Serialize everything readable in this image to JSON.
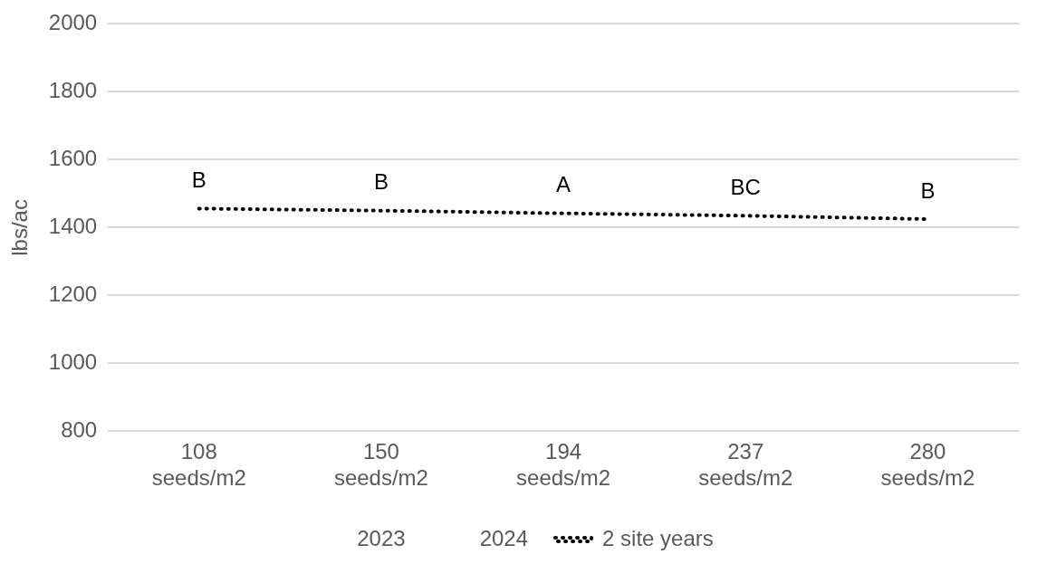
{
  "chart_data": {
    "type": "line",
    "ylabel": "lbs/ac",
    "categories": [
      "108\nseeds/m2",
      "150\nseeds/m2",
      "194\nseeds/m2",
      "237\nseeds/m2",
      "280\nseeds/m2"
    ],
    "series": [
      {
        "name": "2023",
        "type": "bar",
        "values": [
          null,
          null,
          null,
          null,
          null
        ]
      },
      {
        "name": "2024",
        "type": "bar",
        "values": [
          null,
          null,
          null,
          null,
          null
        ]
      },
      {
        "name": "2 site years",
        "color": "#000000",
        "line_style": "dotted",
        "marker": "none",
        "values": [
          1456,
          1450,
          1442,
          1435,
          1425
        ]
      }
    ],
    "ylim": [
      800,
      2000
    ],
    "yticks": [
      800,
      1000,
      1200,
      1400,
      1600,
      1800,
      2000
    ],
    "grid": "y",
    "legend": "bottom",
    "annotations": [
      {
        "text": "B",
        "x": "108\nseeds/m2",
        "y": 1456
      },
      {
        "text": "B",
        "x": "150\nseeds/m2",
        "y": 1450
      },
      {
        "text": "A",
        "x": "194\nseeds/m2",
        "y": 1442
      },
      {
        "text": "BC",
        "x": "237\nseeds/m2",
        "y": 1435
      },
      {
        "text": "B",
        "x": "280\nseeds/m2",
        "y": 1425
      }
    ]
  }
}
